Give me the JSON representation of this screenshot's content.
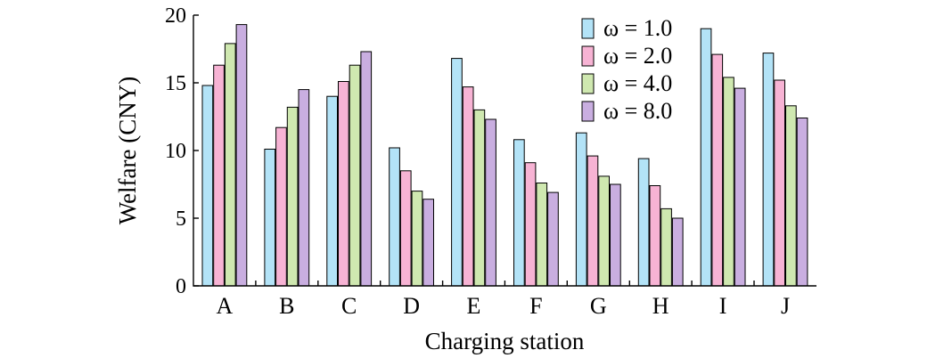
{
  "chart_data": {
    "type": "bar",
    "title": "",
    "xlabel": "Charging station",
    "ylabel": "Welfare (CNY)",
    "ylim": [
      0,
      20
    ],
    "yticks": [
      0,
      5,
      10,
      15,
      20
    ],
    "categories": [
      "A",
      "B",
      "C",
      "D",
      "E",
      "F",
      "G",
      "H",
      "I",
      "J"
    ],
    "series": [
      {
        "name": "ω = 1.0",
        "color": "#b3e3f7",
        "values": [
          14.8,
          10.1,
          14.0,
          10.2,
          16.8,
          10.8,
          11.3,
          9.4,
          19.0,
          17.2
        ]
      },
      {
        "name": "ω = 2.0",
        "color": "#f7b3d4",
        "values": [
          16.3,
          11.7,
          15.1,
          8.5,
          14.7,
          9.1,
          9.6,
          7.4,
          17.1,
          15.2
        ]
      },
      {
        "name": "ω = 4.0",
        "color": "#cfe8b0",
        "values": [
          17.9,
          13.2,
          16.3,
          7.0,
          13.0,
          7.6,
          8.1,
          5.7,
          15.4,
          13.3
        ]
      },
      {
        "name": "ω = 8.0",
        "color": "#c9aee0",
        "values": [
          19.3,
          14.5,
          17.3,
          6.4,
          12.3,
          6.9,
          7.5,
          5.0,
          14.6,
          12.4
        ]
      }
    ],
    "legend": "top-right",
    "grid": false
  }
}
